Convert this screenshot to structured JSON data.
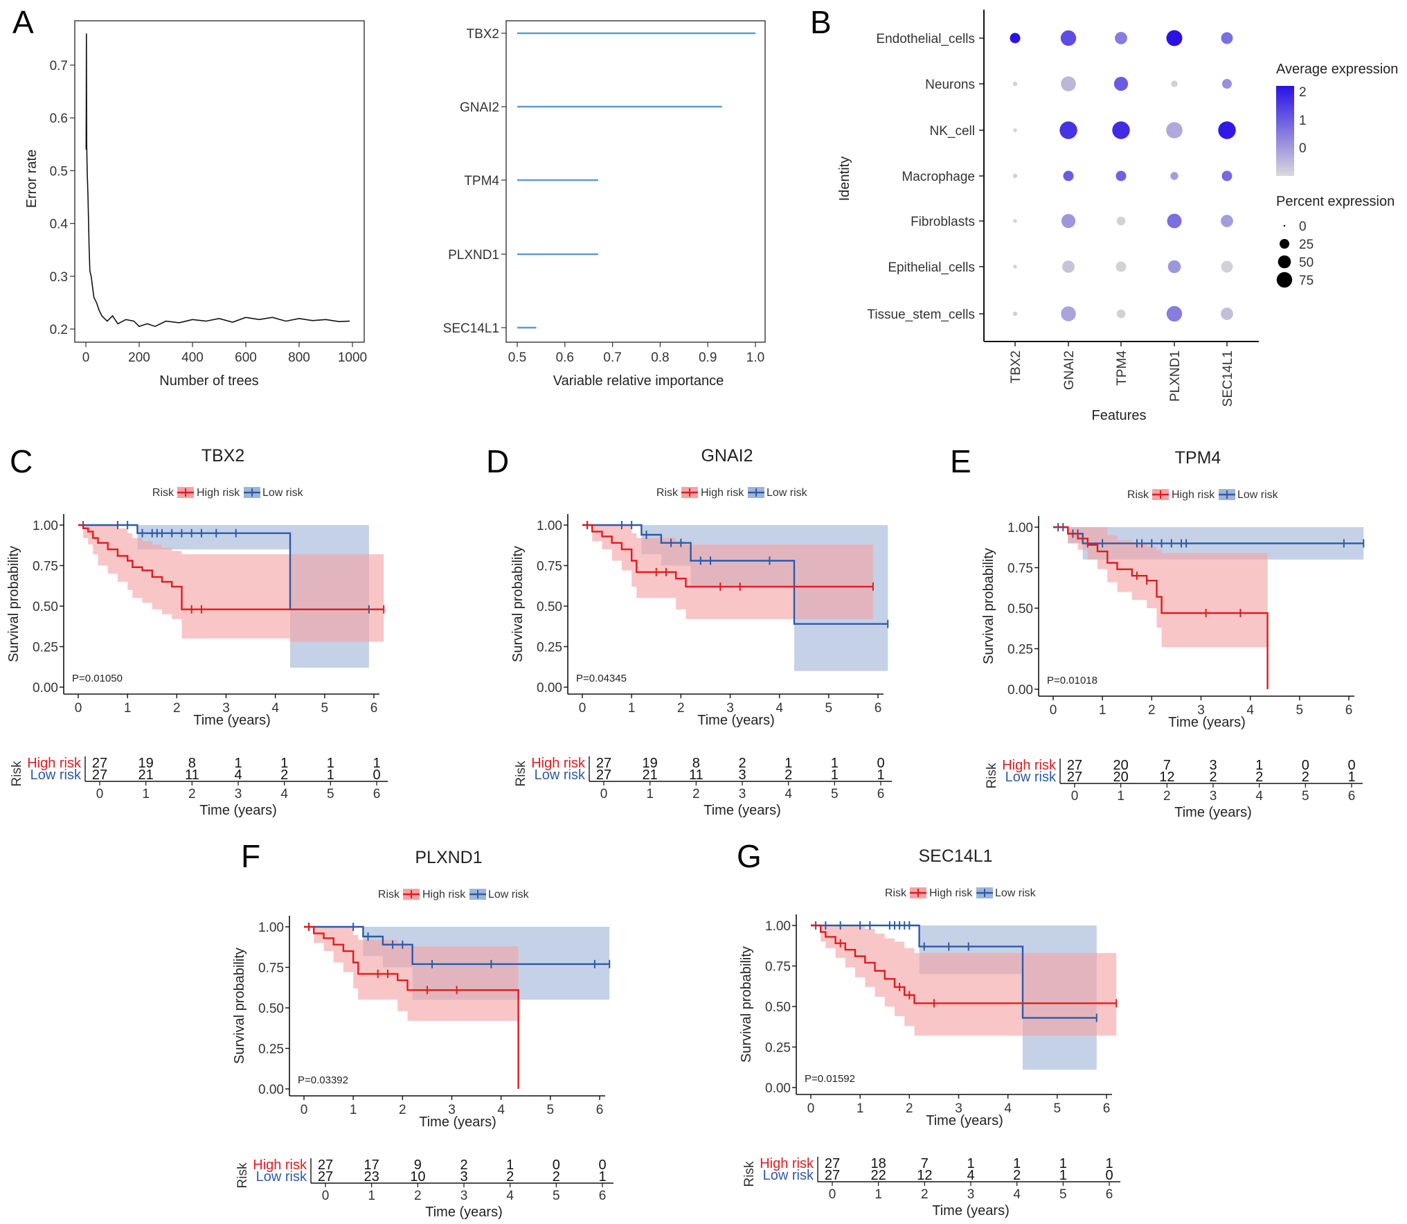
{
  "chart_data": [
    {
      "panel": "A",
      "type": "line",
      "xlabel": "Number of trees",
      "ylabel": "Error rate",
      "xlim": [
        0,
        1000
      ],
      "ylim": [
        0.2,
        0.76
      ],
      "xticks": [
        "0",
        "200",
        "400",
        "600",
        "800",
        "1000"
      ],
      "yticks": [
        "0.2",
        "0.3",
        "0.4",
        "0.5",
        "0.6",
        "0.7"
      ],
      "x": [
        1,
        2,
        3,
        5,
        8,
        12,
        15,
        20,
        25,
        30,
        40,
        50,
        60,
        70,
        80,
        90,
        100,
        120,
        150,
        180,
        200,
        230,
        260,
        300,
        350,
        400,
        450,
        500,
        550,
        600,
        650,
        700,
        750,
        800,
        850,
        900,
        950,
        990
      ],
      "y": [
        0.54,
        0.76,
        0.55,
        0.5,
        0.45,
        0.36,
        0.31,
        0.3,
        0.28,
        0.26,
        0.25,
        0.235,
        0.225,
        0.22,
        0.215,
        0.22,
        0.225,
        0.21,
        0.218,
        0.215,
        0.205,
        0.21,
        0.205,
        0.215,
        0.212,
        0.218,
        0.215,
        0.22,
        0.213,
        0.222,
        0.218,
        0.222,
        0.215,
        0.22,
        0.216,
        0.218,
        0.214,
        0.215
      ]
    },
    {
      "panel": "A2",
      "type": "bar",
      "xlabel": "Variable relative importance",
      "categories": [
        "TBX2",
        "GNAI2",
        "TPM4",
        "PLXND1",
        "SEC14L1"
      ],
      "values": [
        1.0,
        0.93,
        0.67,
        0.67,
        0.54
      ],
      "xlim": [
        0.5,
        1.0
      ],
      "xticks": [
        "0.5",
        "0.6",
        "0.7",
        "0.8",
        "0.9",
        "1.0"
      ]
    },
    {
      "panel": "B",
      "type": "scatter",
      "xlabel": "Features",
      "ylabel": "Identity",
      "features": [
        "TBX2",
        "GNAI2",
        "TPM4",
        "PLXND1",
        "SEC14L1"
      ],
      "identities": [
        "Endothelial_cells",
        "Neurons",
        "NK_cell",
        "Macrophage",
        "Fibroblasts",
        "Epithelial_cells",
        "Tissue_stem_cells"
      ],
      "avg_expression": [
        [
          2.3,
          1.4,
          0.7,
          2.4,
          0.9
        ],
        [
          -0.6,
          -0.2,
          1.2,
          -0.6,
          0.4
        ],
        [
          -0.6,
          1.8,
          1.9,
          0.0,
          2.2
        ],
        [
          -0.6,
          1.2,
          1.1,
          0.2,
          1.0
        ],
        [
          -0.6,
          0.3,
          -0.6,
          0.9,
          0.2
        ],
        [
          -0.6,
          -0.4,
          -0.6,
          0.3,
          -0.6
        ],
        [
          -0.6,
          0.1,
          -0.6,
          0.7,
          -0.3
        ]
      ],
      "pct_expression": [
        [
          30,
          75,
          45,
          80,
          40
        ],
        [
          3,
          70,
          60,
          10,
          25
        ],
        [
          2,
          100,
          100,
          85,
          100
        ],
        [
          3,
          30,
          30,
          15,
          30
        ],
        [
          2,
          60,
          20,
          65,
          45
        ],
        [
          2,
          45,
          30,
          50,
          40
        ],
        [
          3,
          70,
          20,
          75,
          45
        ]
      ],
      "legend": {
        "avg_title": "Average expression",
        "avg_ticks": [
          "2",
          "1",
          "0"
        ],
        "pct_title": "Percent expression",
        "pct_ticks": [
          "0",
          "25",
          "50",
          "75"
        ]
      }
    },
    {
      "panel": "C",
      "type": "line",
      "title": "TBX2",
      "pvalue": "P=0.01050",
      "high": {
        "t": [
          0,
          0.1,
          0.2,
          0.3,
          0.4,
          0.6,
          0.8,
          1.0,
          1.1,
          1.3,
          1.5,
          1.7,
          1.9,
          2.1,
          4.3,
          6.2
        ],
        "s": [
          1.0,
          0.98,
          0.96,
          0.92,
          0.89,
          0.85,
          0.81,
          0.78,
          0.74,
          0.72,
          0.68,
          0.65,
          0.62,
          0.48,
          0.48,
          0.48
        ],
        "lo": [
          1.0,
          0.92,
          0.88,
          0.82,
          0.75,
          0.7,
          0.65,
          0.6,
          0.55,
          0.52,
          0.48,
          0.45,
          0.42,
          0.3,
          0.28,
          0.28
        ],
        "hi": [
          1.0,
          1.0,
          1.0,
          1.0,
          1.0,
          1.0,
          0.98,
          0.95,
          0.92,
          0.9,
          0.88,
          0.86,
          0.84,
          0.82,
          0.82,
          0.82
        ],
        "cens": [
          2.3,
          2.5,
          6.2
        ]
      },
      "low": {
        "t": [
          0,
          1.2,
          4.3,
          5.9
        ],
        "s": [
          1.0,
          0.95,
          0.48,
          0.48
        ],
        "lo": [
          1.0,
          0.85,
          0.12,
          0.12
        ],
        "hi": [
          1.0,
          1.0,
          1.0,
          1.0
        ],
        "cens": [
          0.1,
          0.8,
          1.0,
          1.3,
          1.5,
          1.6,
          1.7,
          1.9,
          2.1,
          2.3,
          2.5,
          2.8,
          3.2,
          5.9
        ]
      },
      "risk_table": {
        "high": [
          "27",
          "19",
          "8",
          "1",
          "1",
          "1",
          "1"
        ],
        "low": [
          "27",
          "21",
          "11",
          "4",
          "2",
          "1",
          "0"
        ]
      }
    },
    {
      "panel": "D",
      "type": "line",
      "title": "GNAI2",
      "pvalue": "P=0.04345",
      "high": {
        "t": [
          0,
          0.2,
          0.4,
          0.6,
          0.8,
          1.0,
          1.1,
          1.9,
          2.1,
          5.9
        ],
        "s": [
          1.0,
          0.96,
          0.93,
          0.89,
          0.85,
          0.78,
          0.71,
          0.67,
          0.62,
          0.62
        ],
        "lo": [
          1.0,
          0.9,
          0.85,
          0.78,
          0.72,
          0.62,
          0.55,
          0.48,
          0.42,
          0.42
        ],
        "hi": [
          1.0,
          1.0,
          1.0,
          1.0,
          1.0,
          0.95,
          0.92,
          0.9,
          0.88,
          0.88
        ],
        "cens": [
          0.1,
          1.5,
          1.7,
          2.8,
          3.2,
          5.9
        ]
      },
      "low": {
        "t": [
          0,
          1.2,
          1.6,
          2.2,
          4.3,
          6.2
        ],
        "s": [
          1.0,
          0.94,
          0.89,
          0.78,
          0.39,
          0.39
        ],
        "lo": [
          1.0,
          0.82,
          0.75,
          0.62,
          0.1,
          0.1
        ],
        "hi": [
          1.0,
          1.0,
          1.0,
          1.0,
          1.0,
          1.0
        ],
        "cens": [
          0.1,
          0.8,
          1.0,
          1.3,
          1.8,
          2.0,
          2.4,
          2.6,
          3.8,
          6.2
        ]
      },
      "risk_table": {
        "high": [
          "27",
          "19",
          "8",
          "2",
          "1",
          "1",
          "0"
        ],
        "low": [
          "27",
          "21",
          "11",
          "3",
          "2",
          "1",
          "1"
        ]
      }
    },
    {
      "panel": "E",
      "type": "line",
      "title": "TPM4",
      "pvalue": "P=0.01018",
      "high": {
        "t": [
          0,
          0.3,
          0.5,
          0.7,
          0.9,
          1.1,
          1.3,
          1.6,
          1.9,
          2.1,
          2.2,
          4.3,
          4.35
        ],
        "s": [
          1.0,
          0.96,
          0.93,
          0.89,
          0.85,
          0.78,
          0.74,
          0.7,
          0.67,
          0.57,
          0.47,
          0.47,
          0.0
        ],
        "lo": [
          1.0,
          0.9,
          0.86,
          0.8,
          0.74,
          0.66,
          0.6,
          0.55,
          0.5,
          0.38,
          0.26,
          0.26,
          0.26
        ],
        "hi": [
          1.0,
          1.0,
          1.0,
          1.0,
          1.0,
          0.95,
          0.92,
          0.9,
          0.88,
          0.86,
          0.84,
          0.84,
          0.84
        ],
        "cens": [
          1.7,
          1.9,
          3.1,
          3.8
        ]
      },
      "low": {
        "t": [
          0,
          0.3,
          0.6,
          6.3
        ],
        "s": [
          1.0,
          0.96,
          0.9,
          0.9
        ],
        "lo": [
          1.0,
          0.9,
          0.8,
          0.8
        ],
        "hi": [
          1.0,
          1.0,
          1.0,
          1.0
        ],
        "cens": [
          0.1,
          0.2,
          0.4,
          0.5,
          0.7,
          1.0,
          1.7,
          1.8,
          2.0,
          2.2,
          2.4,
          2.6,
          2.7,
          5.9,
          6.3
        ]
      },
      "risk_table": {
        "high": [
          "27",
          "20",
          "7",
          "3",
          "1",
          "0",
          "0"
        ],
        "low": [
          "27",
          "20",
          "12",
          "2",
          "2",
          "2",
          "1"
        ]
      }
    },
    {
      "panel": "F",
      "type": "line",
      "title": "PLXND1",
      "pvalue": "P=0.03392",
      "high": {
        "t": [
          0,
          0.2,
          0.4,
          0.6,
          0.8,
          1.0,
          1.1,
          1.9,
          2.1,
          4.3,
          4.35
        ],
        "s": [
          1.0,
          0.96,
          0.93,
          0.89,
          0.85,
          0.78,
          0.71,
          0.67,
          0.61,
          0.61,
          0.0
        ],
        "lo": [
          1.0,
          0.9,
          0.85,
          0.78,
          0.72,
          0.62,
          0.55,
          0.48,
          0.42,
          0.42,
          0.42
        ],
        "hi": [
          1.0,
          1.0,
          1.0,
          1.0,
          1.0,
          0.95,
          0.92,
          0.9,
          0.88,
          0.88,
          0.88
        ],
        "cens": [
          0.1,
          1.5,
          1.7,
          2.5,
          3.1
        ]
      },
      "low": {
        "t": [
          0,
          1.2,
          1.6,
          2.2,
          6.2
        ],
        "s": [
          1.0,
          0.94,
          0.89,
          0.77,
          0.77
        ],
        "lo": [
          1.0,
          0.82,
          0.75,
          0.55,
          0.55
        ],
        "hi": [
          1.0,
          1.0,
          1.0,
          1.0,
          1.0
        ],
        "cens": [
          0.1,
          1.0,
          1.3,
          1.8,
          2.0,
          2.6,
          3.8,
          5.9,
          6.2
        ]
      },
      "risk_table": {
        "high": [
          "27",
          "17",
          "9",
          "2",
          "1",
          "0",
          "0"
        ],
        "low": [
          "27",
          "23",
          "10",
          "3",
          "2",
          "2",
          "1"
        ]
      }
    },
    {
      "panel": "G",
      "type": "line",
      "title": "SEC14L1",
      "pvalue": "P=0.01592",
      "high": {
        "t": [
          0,
          0.2,
          0.3,
          0.5,
          0.7,
          0.9,
          1.1,
          1.3,
          1.5,
          1.7,
          1.9,
          2.1,
          6.2
        ],
        "s": [
          1.0,
          0.96,
          0.93,
          0.89,
          0.85,
          0.81,
          0.77,
          0.72,
          0.67,
          0.62,
          0.57,
          0.52,
          0.52
        ],
        "lo": [
          1.0,
          0.9,
          0.86,
          0.8,
          0.74,
          0.68,
          0.62,
          0.56,
          0.5,
          0.44,
          0.38,
          0.32,
          0.32
        ],
        "hi": [
          1.0,
          1.0,
          1.0,
          1.0,
          1.0,
          1.0,
          0.98,
          0.95,
          0.92,
          0.9,
          0.86,
          0.83,
          0.83
        ],
        "cens": [
          0.6,
          1.8,
          2.0,
          2.5,
          6.2
        ]
      },
      "low": {
        "t": [
          0,
          2.2,
          4.3,
          5.8
        ],
        "s": [
          1.0,
          0.87,
          0.43,
          0.43
        ],
        "lo": [
          1.0,
          0.7,
          0.11,
          0.11
        ],
        "hi": [
          1.0,
          1.0,
          1.0,
          1.0
        ],
        "cens": [
          0.1,
          0.3,
          0.6,
          1.0,
          1.2,
          1.6,
          1.7,
          1.8,
          1.9,
          2.0,
          2.3,
          2.8,
          3.2,
          5.8
        ]
      },
      "risk_table": {
        "high": [
          "27",
          "18",
          "7",
          "1",
          "1",
          "1",
          "1"
        ],
        "low": [
          "27",
          "22",
          "12",
          "4",
          "2",
          "1",
          "0"
        ]
      }
    }
  ],
  "labels": {
    "panels": [
      "A",
      "B",
      "C",
      "D",
      "E",
      "F",
      "G"
    ],
    "km_xlabel": "Time (years)",
    "km_ylabel": "Survival probability",
    "km_xticks": [
      "0",
      "1",
      "2",
      "3",
      "4",
      "5",
      "6"
    ],
    "km_yticks": [
      "0.00",
      "0.25",
      "0.50",
      "0.75",
      "1.00"
    ],
    "legend_risk": "Risk",
    "legend_high": "High risk",
    "legend_low": "Low risk",
    "risk_axis": "Risk",
    "risk_high": "High risk",
    "risk_low": "Low risk"
  },
  "colors": {
    "high": "#e31a1c",
    "low": "#2c5aa8",
    "high_fill": "#f4a3a5",
    "low_fill": "#9fb5d8",
    "bar": "#5b9bd5",
    "dot_low": "#d8d8d8",
    "dot_high": "#2a12e6"
  }
}
